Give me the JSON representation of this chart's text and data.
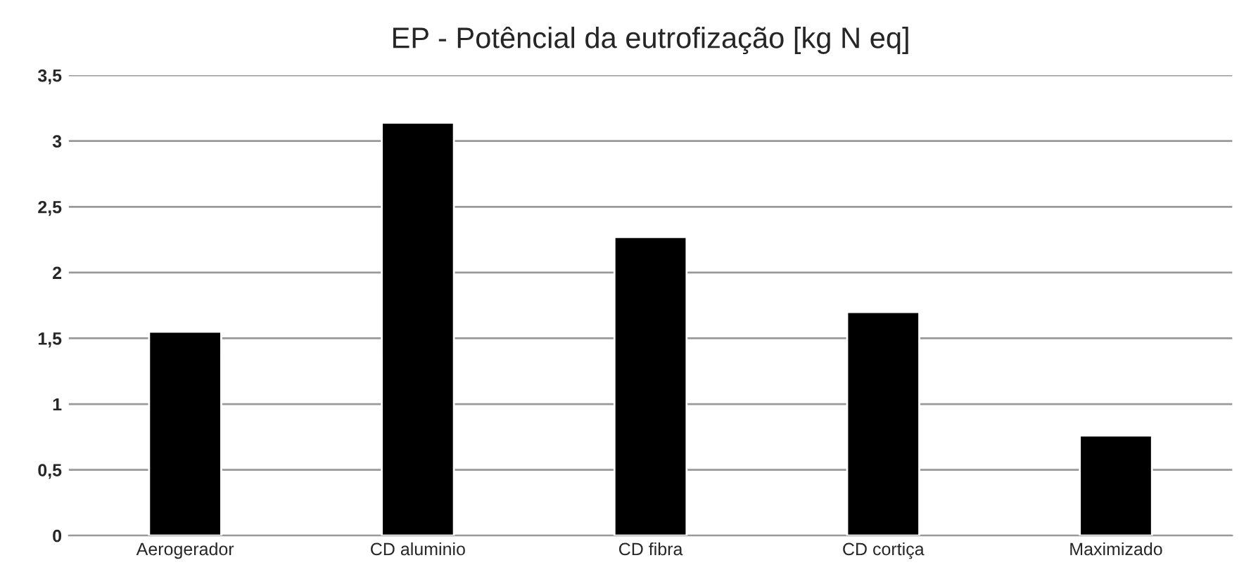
{
  "chart_data": {
    "type": "bar",
    "title": "EP - Potêncial da eutrofização [kg N eq]",
    "categories": [
      "Aerogerador",
      "CD aluminio",
      "CD fibra",
      "CD cortiça",
      "Maximizado"
    ],
    "values": [
      1.55,
      3.14,
      2.27,
      1.7,
      0.76
    ],
    "color": "#000000",
    "ylim": [
      0,
      3.5
    ],
    "yticks": [
      0,
      {
        "value": 0.5,
        "label": "0,5"
      },
      1,
      {
        "value": 1.5,
        "label": "1,5"
      },
      2,
      {
        "value": 2.5,
        "label": "2,5"
      },
      3,
      {
        "value": 3.5,
        "label": "3,5"
      }
    ],
    "grid": "y",
    "legend": false
  }
}
